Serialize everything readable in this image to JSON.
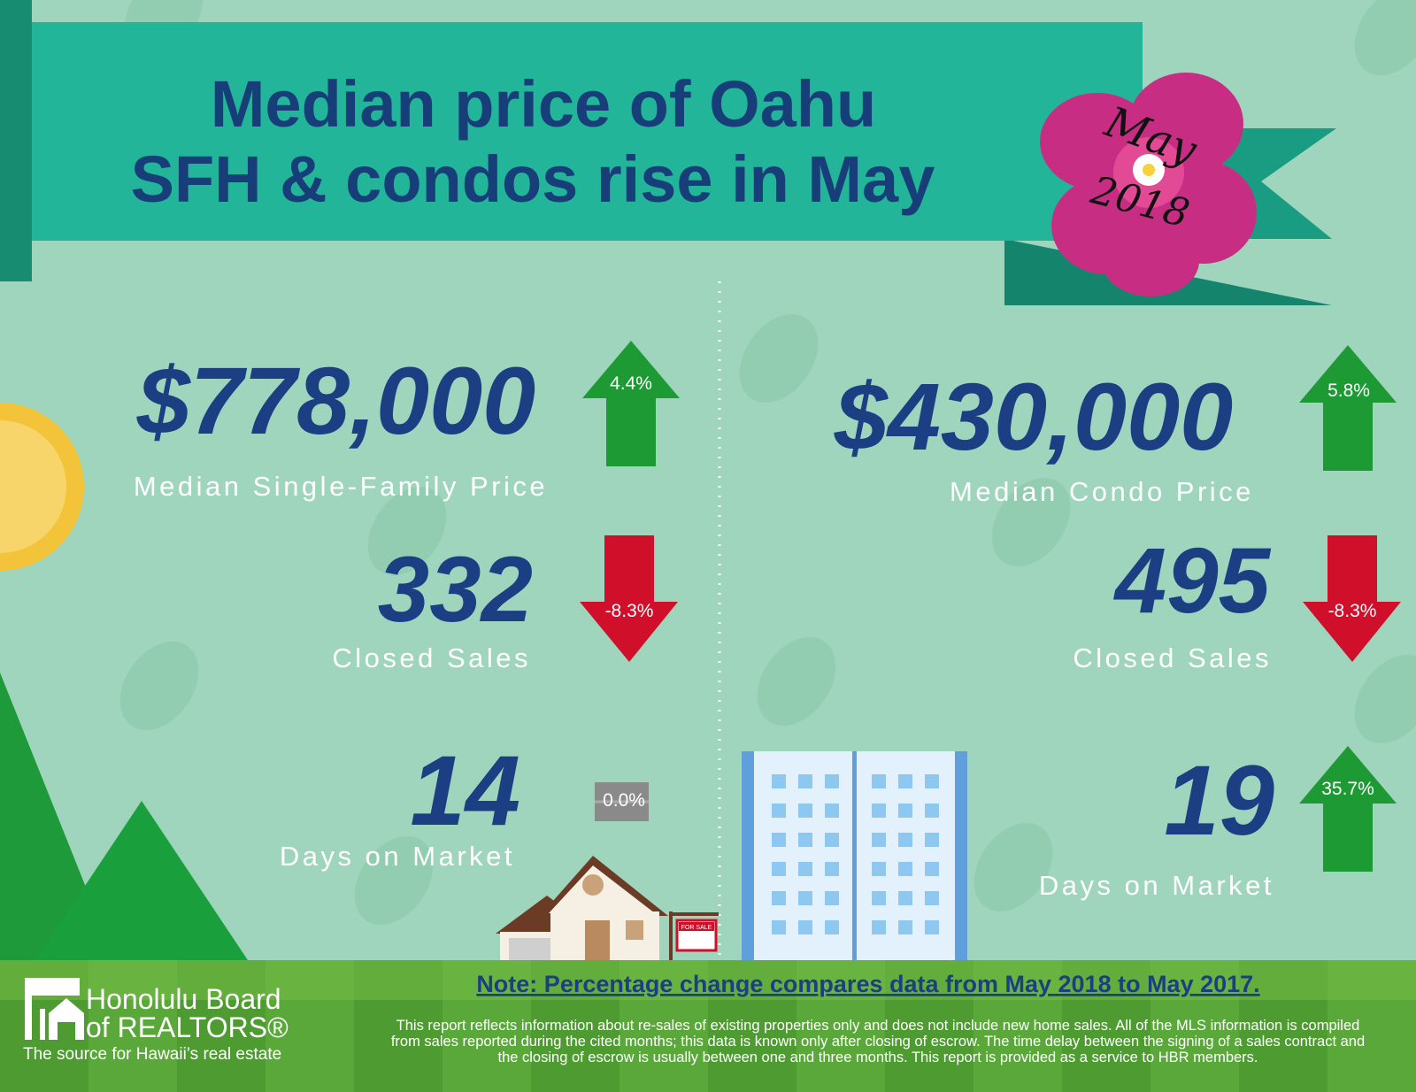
{
  "header": {
    "title_lines": [
      "Median price of Oahu",
      "SFH & condos rise in May"
    ],
    "badge_month": "May",
    "badge_year": "2018"
  },
  "single_family": {
    "price": "$778,000",
    "price_change": "4.4%",
    "price_label": "Median Single-Family Price",
    "closed_sales": "332",
    "closed_sales_change": "-8.3%",
    "closed_sales_label": "Closed Sales",
    "days_on_market": "14",
    "days_on_market_change": "0.0%",
    "days_on_market_label": "Days on Market",
    "sign": "FOR SALE"
  },
  "condo": {
    "price": "$430,000",
    "price_change": "5.8%",
    "price_label": "Median Condo Price",
    "closed_sales": "495",
    "closed_sales_change": "-8.3%",
    "closed_sales_label": "Closed Sales",
    "days_on_market": "19",
    "days_on_market_change": "35.7%",
    "days_on_market_label": "Days on Market"
  },
  "footer": {
    "logo_lines": [
      "Honolulu Board",
      "of REALTORS®"
    ],
    "tagline": "The source for Hawaii’s real estate",
    "note": "Note: Percentage change compares data from May 2018 to May 2017.",
    "disclaimer_lines": [
      "This report reflects information about re-sales of existing properties only and does not include new home sales. All of the MLS information is compiled",
      "from sales reported during the cited months; this data is known only after closing of escrow. The time delay between the signing of a sales contract and",
      "the closing of escrow is usually between one and three months. This report is provided as a service to HBR members."
    ]
  }
}
